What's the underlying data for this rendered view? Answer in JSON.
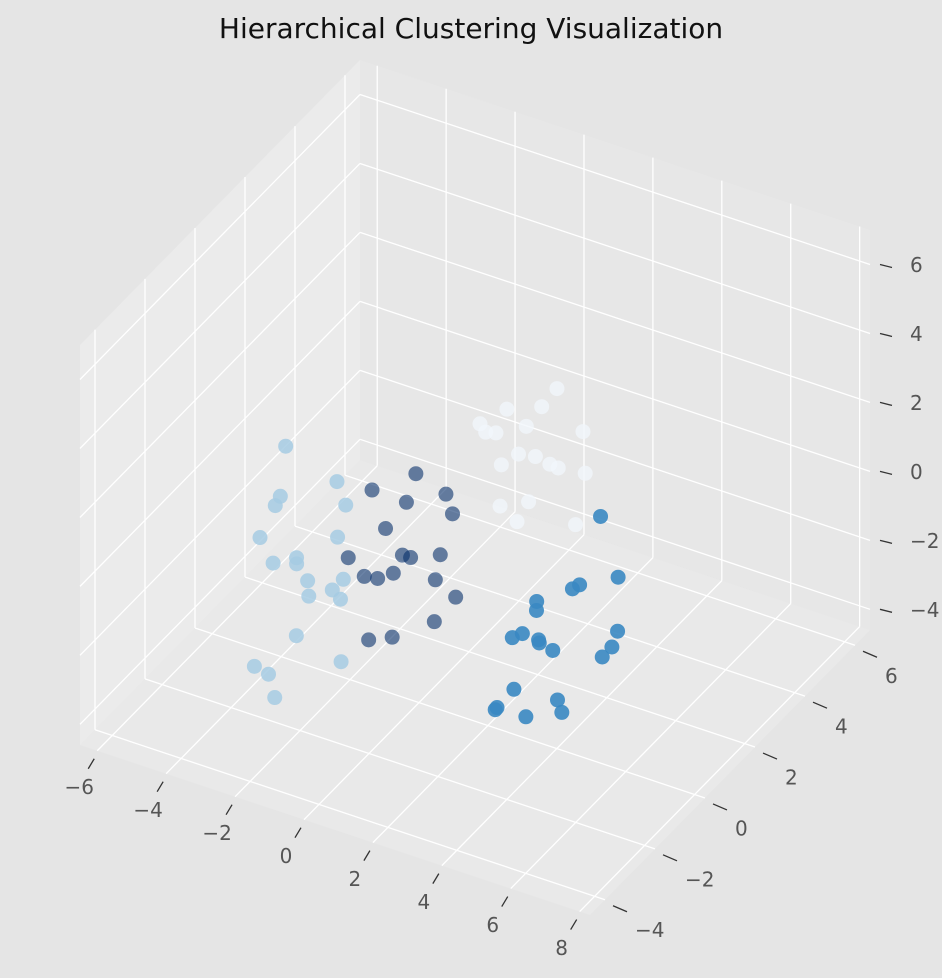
{
  "chart_data": {
    "type": "scatter3d",
    "title": "Hierarchical Clustering Visualization",
    "xlim": [
      -6.5,
      8.3
    ],
    "ylim": [
      -4.6,
      6.6
    ],
    "zlim": [
      -4.6,
      7
    ],
    "xticks": [
      {
        "value": -6,
        "label": "−6"
      },
      {
        "value": -4,
        "label": "−4"
      },
      {
        "value": -2,
        "label": "−2"
      },
      0,
      2,
      4,
      6,
      8
    ],
    "yticks": [
      {
        "value": -4,
        "label": "−4"
      },
      {
        "value": -2,
        "label": "−2"
      },
      0,
      2,
      4,
      6
    ],
    "zticks": [
      {
        "value": -4,
        "label": "−4"
      },
      {
        "value": -2,
        "label": "−2"
      },
      0,
      2,
      4,
      6
    ],
    "grid": true,
    "series": [
      {
        "color": "#f1f6fb",
        "alpha": 0.8,
        "x": [
          1.8,
          2.6,
          1.1,
          2.3,
          3.0,
          1.5,
          2.0,
          2.8,
          0.9,
          1.7,
          3.3,
          2.4,
          1.3,
          2.1,
          3.6,
          1.0,
          2.7,
          1.9
        ],
        "y": [
          1.5,
          0.8,
          2.0,
          2.4,
          1.1,
          0.6,
          1.9,
          2.7,
          1.2,
          0.9,
          2.1,
          1.6,
          2.5,
          0.4,
          1.3,
          1.7,
          0.2,
          2.9
        ],
        "z": [
          2.1,
          1.5,
          2.8,
          1.2,
          2.5,
          3.3,
          1.8,
          2.2,
          2.9,
          1.0,
          1.6,
          3.6,
          2.0,
          2.7,
          0.8,
          2.3,
          1.4,
          3.0
        ]
      },
      {
        "color": "#08306b",
        "alpha": 0.6,
        "x": [
          0.1,
          -0.6,
          0.7,
          -1.0,
          0.4,
          1.2,
          -0.3,
          0.9,
          -1.4,
          0.2,
          0.6,
          -0.8,
          1.5,
          -0.1,
          0.3,
          -0.5,
          1.0,
          -1.2
        ],
        "y": [
          -0.8,
          -0.2,
          -1.3,
          -0.5,
          0.3,
          -1.0,
          -1.6,
          0.1,
          -0.9,
          -0.4,
          -1.9,
          0.6,
          -0.6,
          -1.2,
          0.2,
          -1.5,
          -0.3,
          0.0
        ],
        "z": [
          0.3,
          -0.9,
          0.8,
          1.6,
          -0.4,
          0.1,
          -1.7,
          1.1,
          -0.2,
          2.4,
          -1.1,
          0.5,
          -0.6,
          1.3,
          -2.3,
          0.0,
          2.0,
          -1.4
        ]
      },
      {
        "color": "#a6cbe3",
        "alpha": 0.85,
        "x": [
          -2.1,
          -1.5,
          -2.8,
          -2.4,
          -1.2,
          -3.0,
          -1.8,
          -2.6,
          -0.9,
          -2.2,
          -1.6,
          -3.3,
          -2.0,
          -1.1,
          -2.5,
          -1.9,
          -0.6,
          -2.9,
          -1.4,
          -2.3
        ],
        "y": [
          -2.0,
          -1.4,
          -2.5,
          -1.1,
          -2.8,
          -1.7,
          -0.8,
          -3.0,
          -1.9,
          -2.3,
          -2.7,
          -1.2,
          -0.5,
          -1.6,
          -2.1,
          -3.4,
          -2.2,
          -0.9,
          -1.0,
          -2.6
        ],
        "z": [
          0.2,
          -0.8,
          1.1,
          -1.5,
          0.6,
          -0.3,
          1.8,
          -2.2,
          -0.5,
          3.8,
          -1.2,
          0.9,
          -0.1,
          -2.6,
          2.1,
          -1.9,
          0.4,
          -0.7,
          1.4,
          -3.3
        ]
      },
      {
        "color": "#3a88c2",
        "alpha": 0.9,
        "x": [
          3.2,
          4.1,
          2.6,
          3.8,
          4.6,
          2.9,
          3.5,
          5.1,
          2.2,
          3.9,
          4.4,
          3.0,
          2.7,
          4.8,
          3.6,
          3.3,
          5.4,
          2.4,
          4.0,
          3.7
        ],
        "y": [
          0.4,
          -0.3,
          1.2,
          0.9,
          -0.8,
          -0.2,
          1.6,
          0.3,
          0.7,
          -1.1,
          1.9,
          0.0,
          -0.6,
          1.1,
          2.3,
          -1.5,
          0.5,
          1.4,
          0.2,
          -0.4
        ],
        "z": [
          -2.1,
          -1.5,
          -2.8,
          -0.7,
          -2.4,
          -3.1,
          -1.2,
          -1.8,
          -2.5,
          -2.9,
          -0.9,
          -1.6,
          -3.4,
          -2.2,
          0.3,
          -2.6,
          -1.1,
          -1.9,
          -3.7,
          -0.4
        ]
      }
    ]
  }
}
